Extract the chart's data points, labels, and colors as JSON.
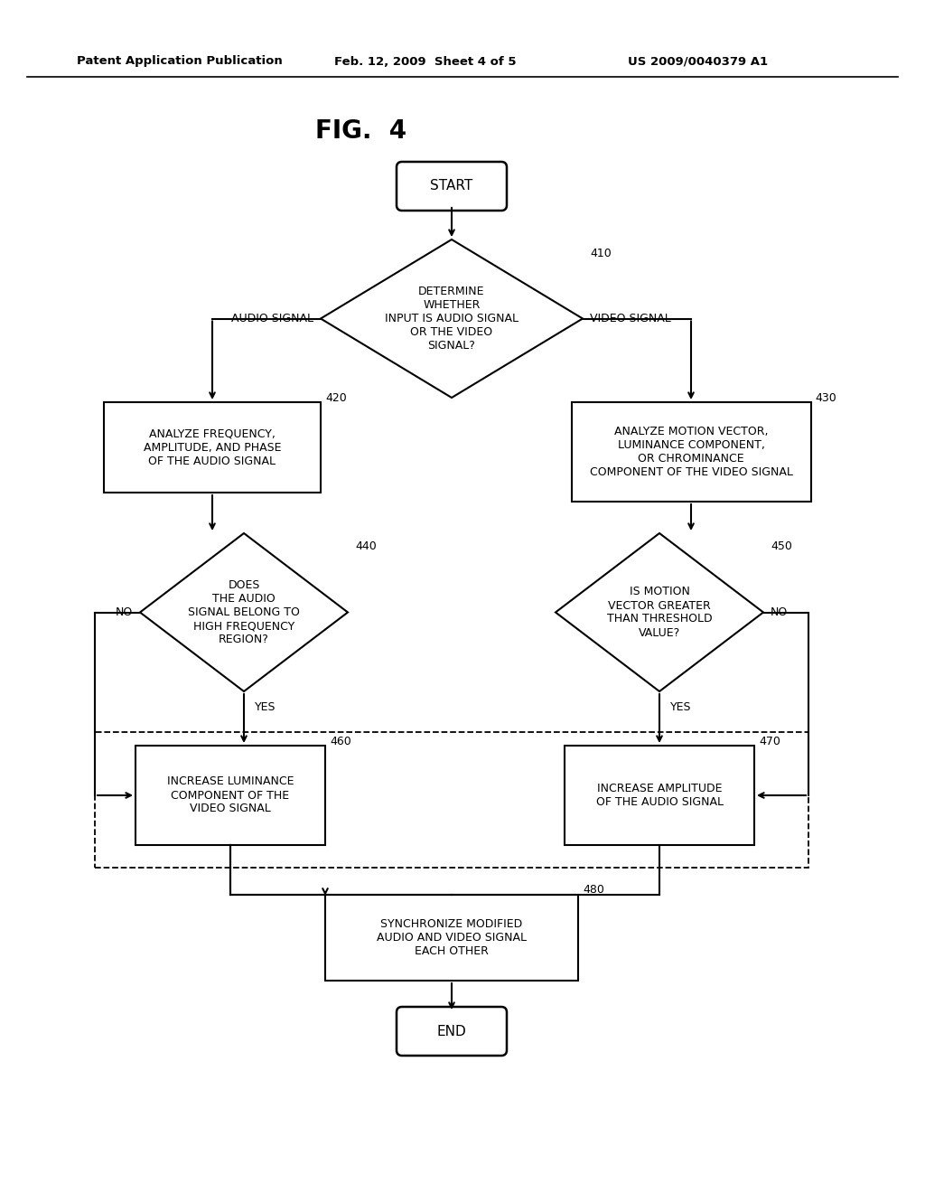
{
  "title": "FIG.  4",
  "header_left": "Patent Application Publication",
  "header_mid": "Feb. 12, 2009  Sheet 4 of 5",
  "header_right": "US 2009/0040379 A1",
  "background": "#ffffff",
  "start_label": "START",
  "end_label": "END",
  "d410_label": "DETERMINE\nWHETHER\nINPUT IS AUDIO SIGNAL\nOR THE VIDEO\nSIGNAL?",
  "d410_ref": "410",
  "b420_label": "ANALYZE FREQUENCY,\nAMPLITUDE, AND PHASE\nOF THE AUDIO SIGNAL",
  "b420_ref": "420",
  "b430_label": "ANALYZE MOTION VECTOR,\nLUMINANCE COMPONENT,\nOR CHROMINANCE\nCOMPONENT OF THE VIDEO SIGNAL",
  "b430_ref": "430",
  "d440_label": "DOES\nTHE AUDIO\nSIGNAL BELONG TO\nHIGH FREQUENCY\nREGION?",
  "d440_ref": "440",
  "d450_label": "IS MOTION\nVECTOR GREATER\nTHAN THRESHOLD\nVALUE?",
  "d450_ref": "450",
  "b460_label": "INCREASE LUMINANCE\nCOMPONENT OF THE\nVIDEO SIGNAL",
  "b460_ref": "460",
  "b470_label": "INCREASE AMPLITUDE\nOF THE AUDIO SIGNAL",
  "b470_ref": "470",
  "b480_label": "SYNCHRONIZE MODIFIED\nAUDIO AND VIDEO SIGNAL\nEACH OTHER",
  "b480_ref": "480",
  "audio_signal": "AUDIO SIGNAL",
  "video_signal": "VIDEO SIGNAL",
  "yes": "YES",
  "no": "NO"
}
